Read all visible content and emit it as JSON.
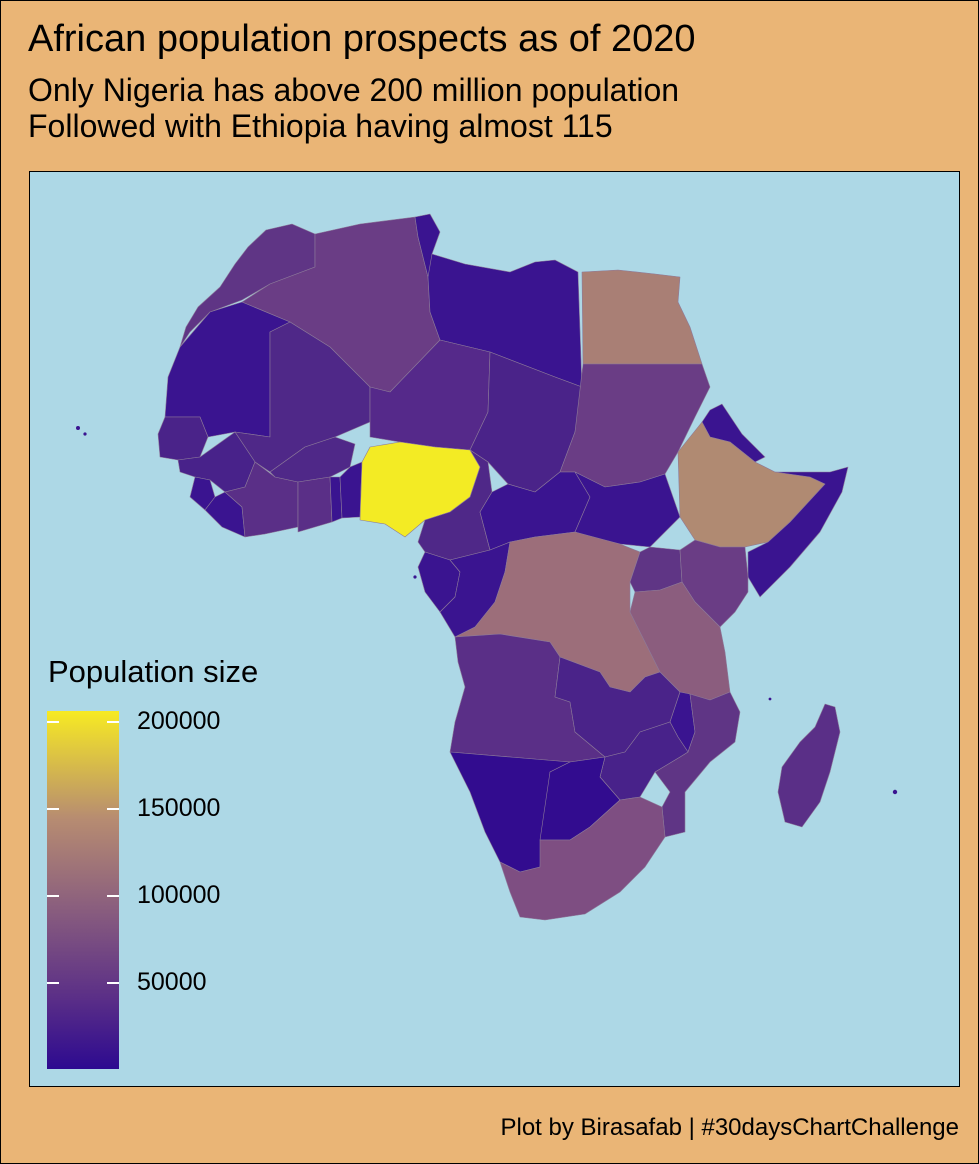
{
  "title": "African population prospects as of 2020",
  "subtitle_line1": "Only Nigeria has above 200 million population",
  "subtitle_line2": "Followed with Ethiopia having almost 115",
  "caption": "Plot by Birasafab | #30daysChartChallenge",
  "legend": {
    "title": "Population size",
    "ticks": [
      "200000",
      "150000",
      "100000",
      "50000"
    ],
    "min_value": 0,
    "max_value": 206000
  },
  "colors": {
    "panel_background": "#add8e6",
    "page_background": "#eab576",
    "scale_low": "#2d0a90",
    "scale_high": "#f7ea23"
  },
  "map": {
    "type": "choropleth",
    "highlighted_country": "Nigeria",
    "regions": [
      {
        "name": "Morocco",
        "fill": "#5f3585"
      },
      {
        "name": "Algeria",
        "fill": "#6a3d85"
      },
      {
        "name": "Tunisia",
        "fill": "#3a1490"
      },
      {
        "name": "Libya",
        "fill": "#3a1490"
      },
      {
        "name": "Egypt",
        "fill": "#a97f75"
      },
      {
        "name": "Mauritania",
        "fill": "#3a1490"
      },
      {
        "name": "Mali",
        "fill": "#4f2888"
      },
      {
        "name": "Niger",
        "fill": "#55298a"
      },
      {
        "name": "Chad",
        "fill": "#4a2389"
      },
      {
        "name": "Sudan",
        "fill": "#6a3d85"
      },
      {
        "name": "Senegal",
        "fill": "#4a2389"
      },
      {
        "name": "Guinea",
        "fill": "#48228a"
      },
      {
        "name": "Sierra Leone",
        "fill": "#3a1490"
      },
      {
        "name": "Liberia",
        "fill": "#3a1490"
      },
      {
        "name": "Cote d'Ivoire",
        "fill": "#5a2f87"
      },
      {
        "name": "Burkina Faso",
        "fill": "#4f2888"
      },
      {
        "name": "Ghana",
        "fill": "#5a2f87"
      },
      {
        "name": "Togo",
        "fill": "#3a1490"
      },
      {
        "name": "Benin",
        "fill": "#3a1490"
      },
      {
        "name": "Nigeria",
        "fill": "#f3eb24"
      },
      {
        "name": "Cameroon",
        "fill": "#4f2888"
      },
      {
        "name": "Central African Republic",
        "fill": "#3a1490"
      },
      {
        "name": "South Sudan",
        "fill": "#3a1490"
      },
      {
        "name": "Eritrea",
        "fill": "#3a1490"
      },
      {
        "name": "Ethiopia",
        "fill": "#b08a72"
      },
      {
        "name": "Somalia",
        "fill": "#3a1490"
      },
      {
        "name": "Gabon",
        "fill": "#3a1490"
      },
      {
        "name": "Congo",
        "fill": "#3a1490"
      },
      {
        "name": "DR Congo",
        "fill": "#9c6e7a"
      },
      {
        "name": "Uganda",
        "fill": "#5f3585"
      },
      {
        "name": "Kenya",
        "fill": "#6a3d85"
      },
      {
        "name": "Tanzania",
        "fill": "#8b5d7e"
      },
      {
        "name": "Angola",
        "fill": "#5a2f87"
      },
      {
        "name": "Zambia",
        "fill": "#4a2389"
      },
      {
        "name": "Malawi",
        "fill": "#3a1490"
      },
      {
        "name": "Mozambique",
        "fill": "#5f3585"
      },
      {
        "name": "Zimbabwe",
        "fill": "#48228a"
      },
      {
        "name": "Namibia",
        "fill": "#320c8f"
      },
      {
        "name": "Botswana",
        "fill": "#320c8f"
      },
      {
        "name": "South Africa",
        "fill": "#7e4e82"
      },
      {
        "name": "Madagascar",
        "fill": "#5a2f87"
      }
    ]
  }
}
